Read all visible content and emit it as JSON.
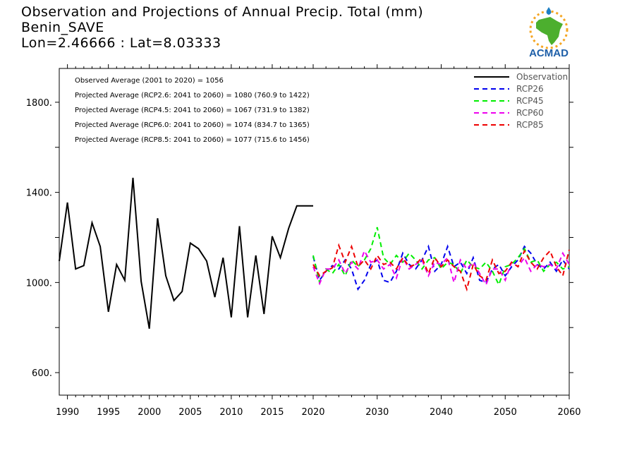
{
  "header": {
    "title": "Observation and Projections of Annual Precip. Total (mm)",
    "location": "Benin_SAVE",
    "coords": "Lon=2.46666 : Lat=8.03333"
  },
  "logo": {
    "text": "ACMAD",
    "icon": "africa-map-sun-logo",
    "colors": {
      "africa": "#4caf2e",
      "sun": "#f5a623",
      "drop": "#1e7fc4",
      "text": "#1e5fa8"
    }
  },
  "colors": {
    "Observation": "#000000",
    "RCP26": "#0000ee",
    "RCP45": "#00ee00",
    "RCP60": "#ee00ee",
    "RCP85": "#ee0000"
  },
  "chart_data": {
    "type": "line",
    "xlim": [
      1989,
      2060
    ],
    "ylim": [
      500,
      1950
    ],
    "x_ticks_left": [
      1990,
      1995,
      2000,
      2005,
      2010,
      2015,
      2020
    ],
    "x_ticks_right": [
      2030,
      2040,
      2050,
      2060
    ],
    "y_ticks": [
      "600.",
      "1000.",
      "1400.",
      "1800."
    ],
    "stats": [
      "Observed Average (2001 to 2020) = 1056",
      "Projected Average (RCP2.6: 2041 to 2060) = 1080 (760.9 to 1422)",
      "Projected Average (RCP4.5: 2041 to 2060) = 1067 (731.9 to 1382)",
      "Projected Average (RCP6.0: 2041 to 2060) = 1074 (834.7 to 1365)",
      "Projected Average (RCP8.5: 2041 to 2060) = 1077 (715.6 to 1456)"
    ],
    "legend_position": "top-right",
    "series": [
      {
        "name": "Observation",
        "style": "solid",
        "x": [
          1989,
          1990,
          1991,
          1992,
          1993,
          1994,
          1995,
          1996,
          1997,
          1998,
          1999,
          2000,
          2001,
          2002,
          2003,
          2004,
          2005,
          2006,
          2007,
          2008,
          2009,
          2010,
          2011,
          2012,
          2013,
          2014,
          2015,
          2016,
          2017,
          2018,
          2019,
          2020
        ],
        "values": [
          1095,
          1355,
          1060,
          1075,
          1265,
          1160,
          870,
          1080,
          1010,
          1465,
          1005,
          795,
          1285,
          1030,
          920,
          960,
          1175,
          1150,
          1095,
          935,
          1110,
          845,
          1250,
          845,
          1120,
          860,
          1205,
          1110,
          1240,
          1340,
          1340,
          1340
        ]
      },
      {
        "name": "RCP26",
        "style": "dashed",
        "x": [
          2020,
          2021,
          2022,
          2023,
          2024,
          2025,
          2026,
          2027,
          2028,
          2029,
          2030,
          2031,
          2032,
          2033,
          2034,
          2035,
          2036,
          2037,
          2038,
          2039,
          2040,
          2041,
          2042,
          2043,
          2044,
          2045,
          2046,
          2047,
          2048,
          2049,
          2050,
          2051,
          2052,
          2053,
          2054,
          2055,
          2056,
          2057,
          2058,
          2059,
          2060
        ],
        "values": [
          1115,
          1010,
          1050,
          1075,
          1060,
          1100,
          1060,
          970,
          1010,
          1080,
          1100,
          1010,
          1000,
          1050,
          1130,
          1080,
          1060,
          1100,
          1160,
          1050,
          1080,
          1160,
          1070,
          1090,
          1040,
          1110,
          1010,
          1000,
          1060,
          1080,
          1030,
          1070,
          1100,
          1160,
          1130,
          1080,
          1060,
          1090,
          1050,
          1100,
          1060
        ]
      },
      {
        "name": "RCP45",
        "style": "dashed",
        "x": [
          2020,
          2021,
          2022,
          2023,
          2024,
          2025,
          2026,
          2027,
          2028,
          2029,
          2030,
          2031,
          2032,
          2033,
          2034,
          2035,
          2036,
          2037,
          2038,
          2039,
          2040,
          2041,
          2042,
          2043,
          2044,
          2045,
          2046,
          2047,
          2048,
          2049,
          2050,
          2051,
          2052,
          2053,
          2054,
          2055,
          2056,
          2057,
          2058,
          2059,
          2060
        ],
        "values": [
          1120,
          1000,
          1060,
          1040,
          1080,
          1030,
          1100,
          1070,
          1100,
          1150,
          1245,
          1110,
          1080,
          1120,
          1090,
          1130,
          1100,
          1060,
          1100,
          1110,
          1060,
          1090,
          1080,
          1040,
          1100,
          1070,
          1060,
          1090,
          1050,
          990,
          1070,
          1080,
          1110,
          1150,
          1090,
          1100,
          1050,
          1080,
          1090,
          1060,
          1070
        ]
      },
      {
        "name": "RCP60",
        "style": "dashed",
        "x": [
          2020,
          2021,
          2022,
          2023,
          2024,
          2025,
          2026,
          2027,
          2028,
          2029,
          2030,
          2031,
          2032,
          2033,
          2034,
          2035,
          2036,
          2037,
          2038,
          2039,
          2040,
          2041,
          2042,
          2043,
          2044,
          2045,
          2046,
          2047,
          2048,
          2049,
          2050,
          2051,
          2052,
          2053,
          2054,
          2055,
          2056,
          2057,
          2058,
          2059,
          2060
        ],
        "values": [
          1070,
          995,
          1060,
          1060,
          1100,
          1040,
          1090,
          1060,
          1140,
          1090,
          1100,
          1060,
          1080,
          1020,
          1110,
          1060,
          1080,
          1100,
          1030,
          1090,
          1080,
          1110,
          1000,
          1100,
          1060,
          1090,
          1040,
          990,
          1060,
          1060,
          1010,
          1090,
          1070,
          1110,
          1050,
          1080,
          1070,
          1080,
          1060,
          1130,
          1080
        ]
      },
      {
        "name": "RCP85",
        "style": "dashed",
        "x": [
          2020,
          2021,
          2022,
          2023,
          2024,
          2025,
          2026,
          2027,
          2028,
          2029,
          2030,
          2031,
          2032,
          2033,
          2034,
          2035,
          2036,
          2037,
          2038,
          2039,
          2040,
          2041,
          2042,
          2043,
          2044,
          2045,
          2046,
          2047,
          2048,
          2049,
          2050,
          2051,
          2052,
          2053,
          2054,
          2055,
          2056,
          2057,
          2058,
          2059,
          2060
        ],
        "values": [
          1080,
          1030,
          1050,
          1065,
          1165,
          1090,
          1160,
          1070,
          1100,
          1060,
          1120,
          1080,
          1090,
          1060,
          1110,
          1070,
          1080,
          1110,
          1040,
          1110,
          1070,
          1100,
          1070,
          1050,
          970,
          1080,
          1030,
          1010,
          1100,
          1040,
          1050,
          1090,
          1070,
          1140,
          1090,
          1060,
          1110,
          1140,
          1070,
          1030,
          1145
        ]
      }
    ]
  }
}
